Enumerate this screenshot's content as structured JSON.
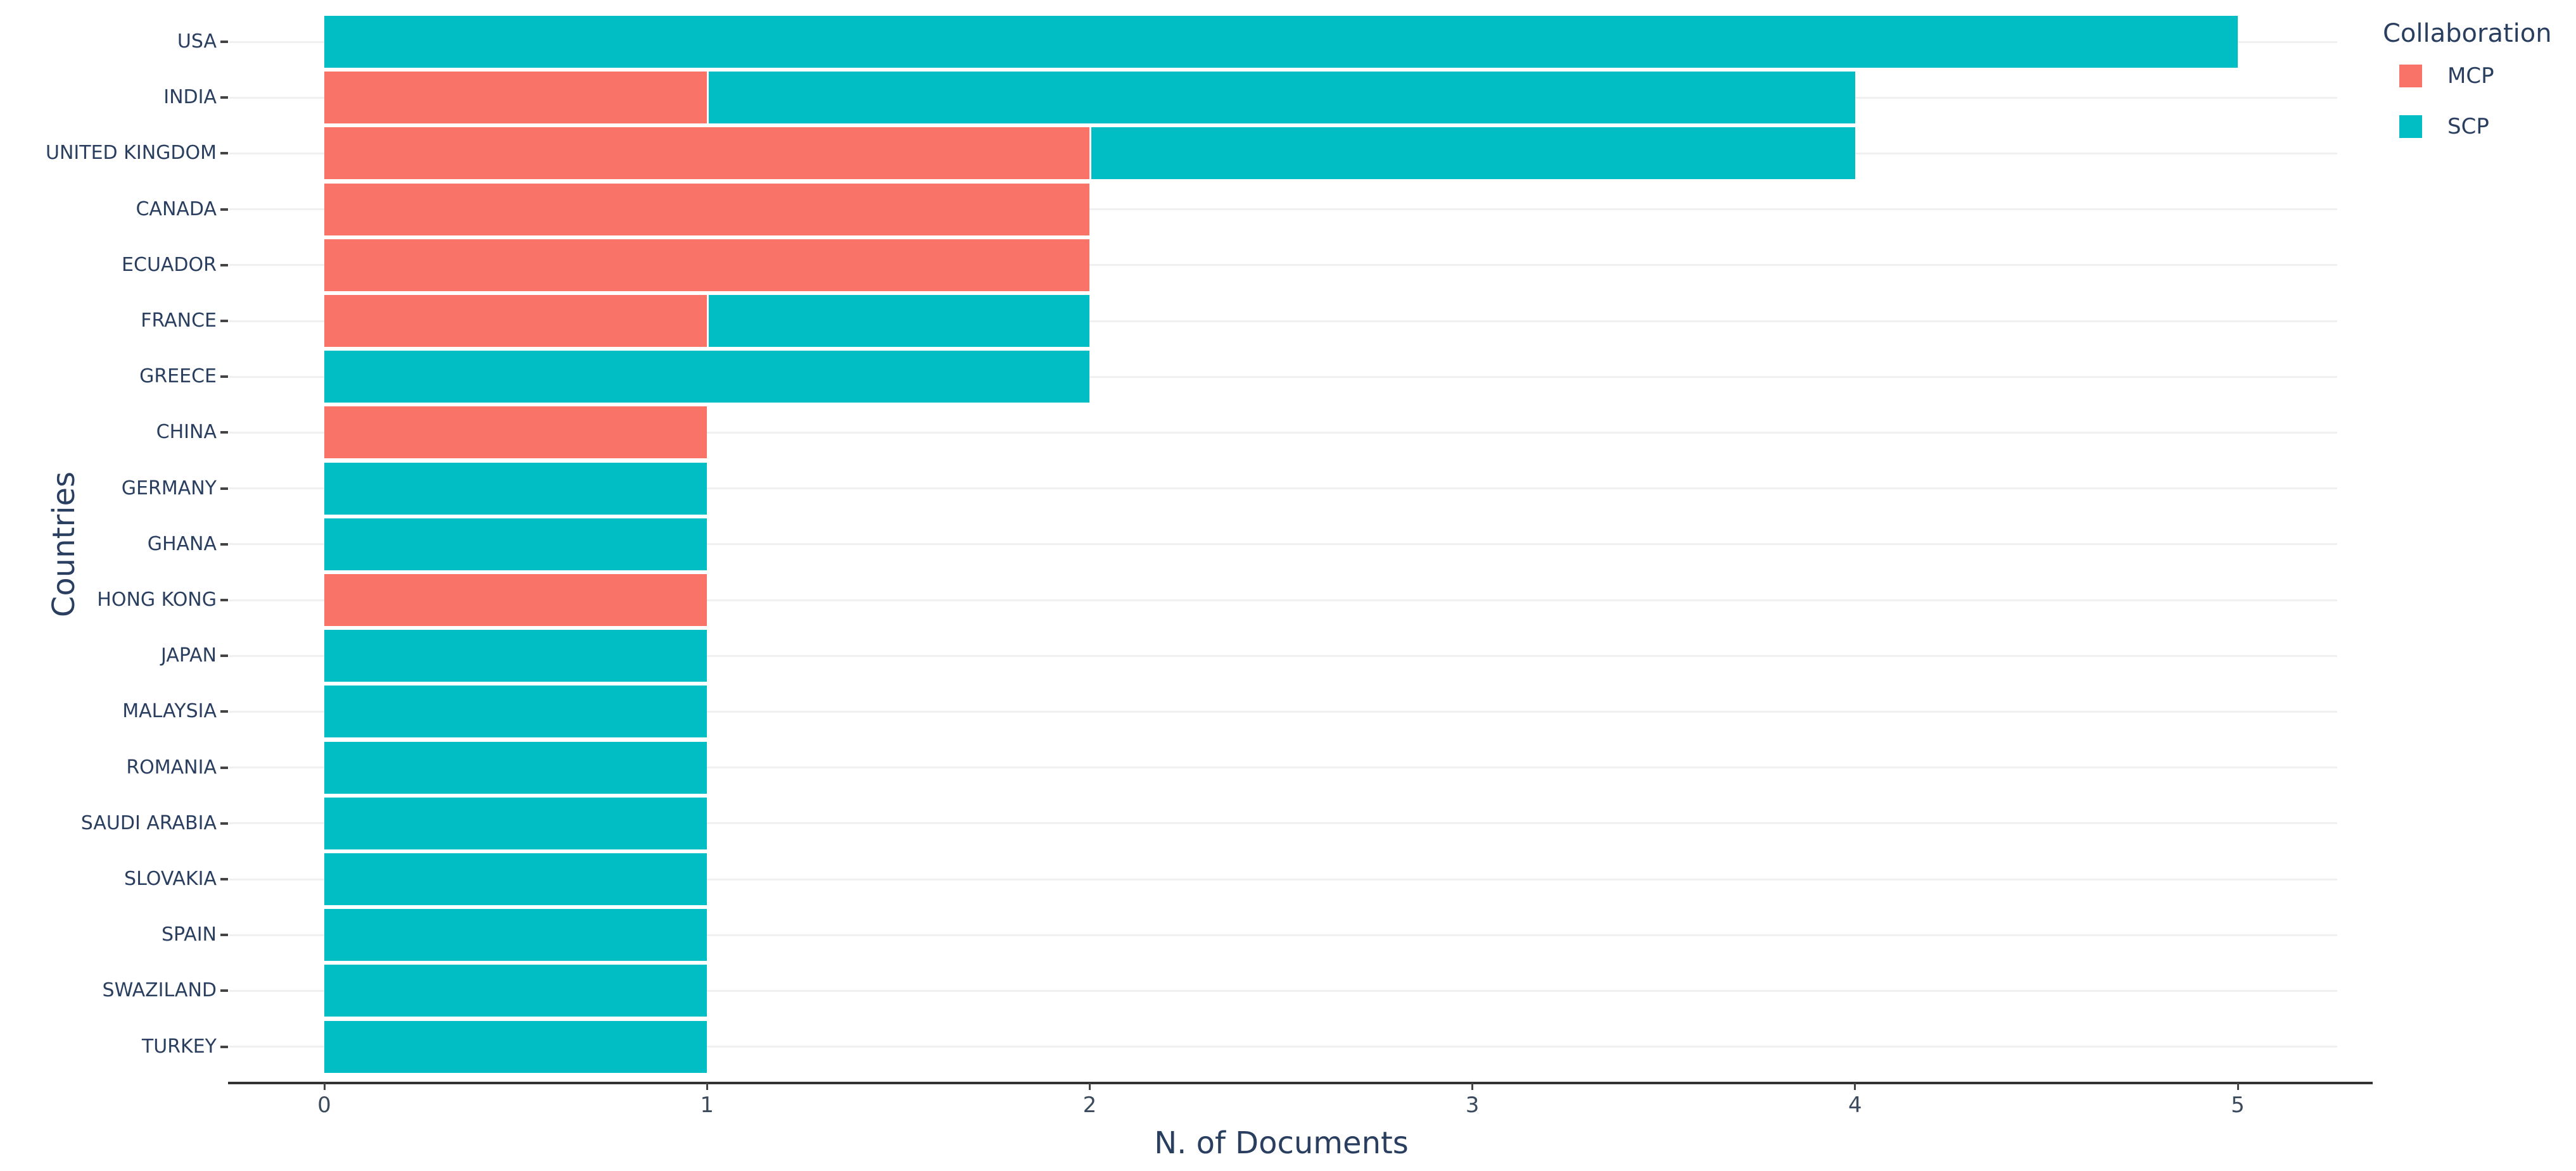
{
  "chart_data": {
    "type": "bar",
    "orientation": "horizontal",
    "stacked": true,
    "title": "",
    "xlabel": "N. of Documents",
    "ylabel": "Countries",
    "xlim": [
      0,
      5
    ],
    "xticks": [
      0,
      1,
      2,
      3,
      4,
      5
    ],
    "grid": "horizontal-category-lines-only",
    "legend_position": "top-right",
    "categories": [
      "USA",
      "INDIA",
      "UNITED KINGDOM",
      "CANADA",
      "ECUADOR",
      "FRANCE",
      "GREECE",
      "CHINA",
      "GERMANY",
      "GHANA",
      "HONG KONG",
      "JAPAN",
      "MALAYSIA",
      "ROMANIA",
      "SAUDI ARABIA",
      "SLOVAKIA",
      "SPAIN",
      "SWAZILAND",
      "TURKEY"
    ],
    "series": [
      {
        "name": "MCP",
        "color": "#FA7368",
        "values": [
          0,
          1,
          2,
          2,
          2,
          1,
          0,
          1,
          0,
          0,
          1,
          0,
          0,
          0,
          0,
          0,
          0,
          0,
          0
        ]
      },
      {
        "name": "SCP",
        "color": "#00BEC4",
        "values": [
          5,
          3,
          2,
          0,
          0,
          1,
          2,
          0,
          1,
          1,
          0,
          1,
          1,
          1,
          1,
          1,
          1,
          1,
          1
        ]
      }
    ],
    "legend": {
      "title": "Collaboration",
      "items": [
        "MCP",
        "SCP"
      ]
    }
  },
  "palette": {
    "background": "#ffffff",
    "gridline": "#f0f0f0",
    "axis_line": "#333333",
    "tick_mark": "#444444",
    "text": "#2a3f5f"
  }
}
